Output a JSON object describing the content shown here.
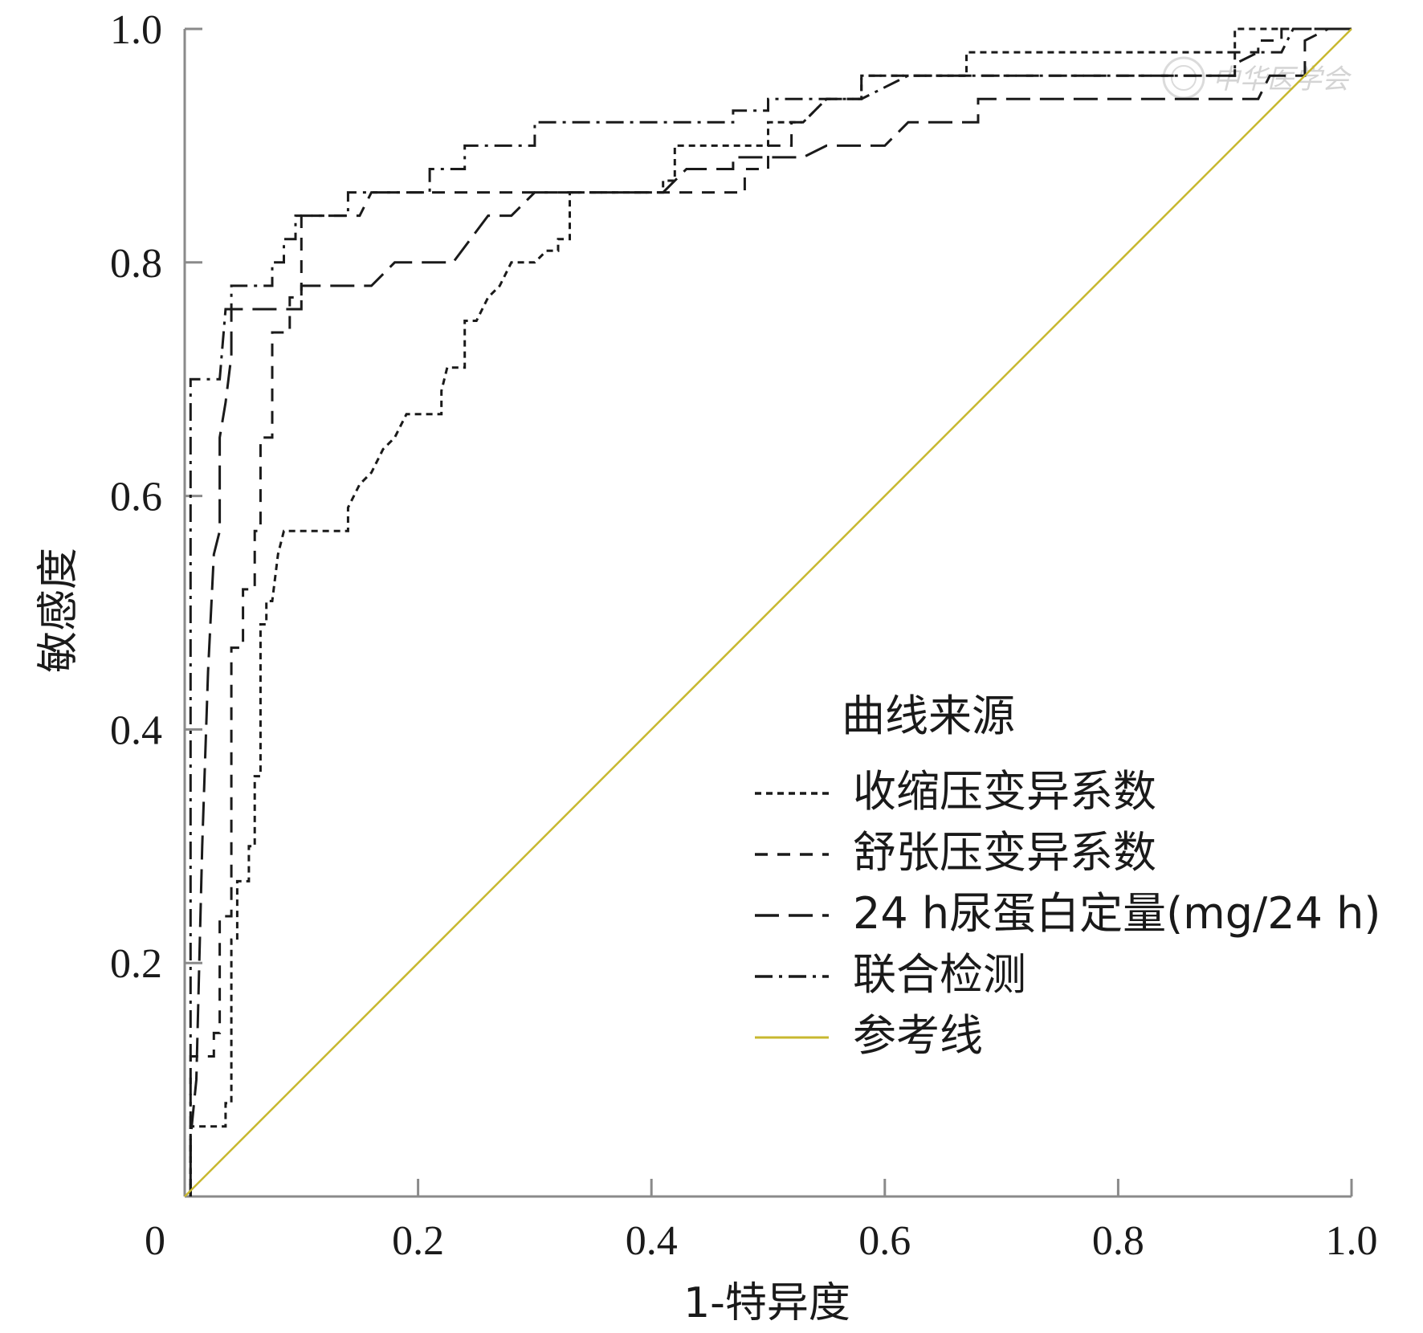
{
  "chart_data": {
    "type": "line",
    "title": "",
    "xlabel": "1-特异度",
    "ylabel": "敏感度",
    "xlim": [
      0,
      1
    ],
    "ylim": [
      0,
      1
    ],
    "x_ticks": [
      "0",
      "0.2",
      "0.4",
      "0.6",
      "0.8",
      "1.0"
    ],
    "y_ticks": [
      "0.2",
      "0.4",
      "0.6",
      "0.8",
      "1.0"
    ],
    "grid": false,
    "legend": {
      "title": "曲线来源",
      "position": "bottom-right"
    },
    "series": [
      {
        "name": "收缩压变异系数",
        "style": "short-dash",
        "color": "#1a1a1a",
        "points": [
          [
            0.005,
            0
          ],
          [
            0.005,
            0.06
          ],
          [
            0.035,
            0.06
          ],
          [
            0.035,
            0.08
          ],
          [
            0.04,
            0.08
          ],
          [
            0.04,
            0.22
          ],
          [
            0.045,
            0.22
          ],
          [
            0.045,
            0.27
          ],
          [
            0.055,
            0.27
          ],
          [
            0.055,
            0.3
          ],
          [
            0.06,
            0.3
          ],
          [
            0.06,
            0.36
          ],
          [
            0.065,
            0.36
          ],
          [
            0.065,
            0.49
          ],
          [
            0.07,
            0.49
          ],
          [
            0.07,
            0.51
          ],
          [
            0.075,
            0.51
          ],
          [
            0.08,
            0.55
          ],
          [
            0.085,
            0.57
          ],
          [
            0.14,
            0.57
          ],
          [
            0.14,
            0.59
          ],
          [
            0.15,
            0.61
          ],
          [
            0.16,
            0.62
          ],
          [
            0.17,
            0.64
          ],
          [
            0.18,
            0.65
          ],
          [
            0.19,
            0.67
          ],
          [
            0.22,
            0.67
          ],
          [
            0.22,
            0.69
          ],
          [
            0.225,
            0.71
          ],
          [
            0.24,
            0.71
          ],
          [
            0.24,
            0.75
          ],
          [
            0.25,
            0.75
          ],
          [
            0.26,
            0.77
          ],
          [
            0.27,
            0.78
          ],
          [
            0.28,
            0.8
          ],
          [
            0.3,
            0.8
          ],
          [
            0.31,
            0.81
          ],
          [
            0.32,
            0.81
          ],
          [
            0.32,
            0.82
          ],
          [
            0.33,
            0.82
          ],
          [
            0.33,
            0.86
          ],
          [
            0.39,
            0.86
          ],
          [
            0.41,
            0.86
          ],
          [
            0.41,
            0.87
          ],
          [
            0.42,
            0.87
          ],
          [
            0.42,
            0.9
          ],
          [
            0.5,
            0.9
          ],
          [
            0.5,
            0.92
          ],
          [
            0.53,
            0.92
          ],
          [
            0.55,
            0.94
          ],
          [
            0.58,
            0.94
          ],
          [
            0.58,
            0.96
          ],
          [
            0.67,
            0.96
          ],
          [
            0.67,
            0.98
          ],
          [
            0.9,
            0.98
          ],
          [
            0.9,
            1.0
          ],
          [
            1.0,
            1.0
          ]
        ]
      },
      {
        "name": "舒张压变异系数",
        "style": "dash",
        "color": "#1a1a1a",
        "points": [
          [
            0.005,
            0
          ],
          [
            0.005,
            0.12
          ],
          [
            0.025,
            0.12
          ],
          [
            0.025,
            0.14
          ],
          [
            0.03,
            0.14
          ],
          [
            0.03,
            0.24
          ],
          [
            0.04,
            0.24
          ],
          [
            0.04,
            0.47
          ],
          [
            0.05,
            0.47
          ],
          [
            0.05,
            0.52
          ],
          [
            0.06,
            0.52
          ],
          [
            0.06,
            0.57
          ],
          [
            0.065,
            0.57
          ],
          [
            0.065,
            0.65
          ],
          [
            0.075,
            0.65
          ],
          [
            0.075,
            0.74
          ],
          [
            0.09,
            0.74
          ],
          [
            0.09,
            0.77
          ],
          [
            0.1,
            0.77
          ],
          [
            0.1,
            0.84
          ],
          [
            0.15,
            0.84
          ],
          [
            0.16,
            0.86
          ],
          [
            0.48,
            0.86
          ],
          [
            0.48,
            0.88
          ],
          [
            0.5,
            0.88
          ],
          [
            0.5,
            0.9
          ],
          [
            0.52,
            0.9
          ],
          [
            0.52,
            0.92
          ],
          [
            0.53,
            0.92
          ],
          [
            0.55,
            0.94
          ],
          [
            0.58,
            0.94
          ],
          [
            0.58,
            0.96
          ],
          [
            0.9,
            0.96
          ],
          [
            0.9,
            0.98
          ],
          [
            0.92,
            0.98
          ],
          [
            0.92,
            0.99
          ],
          [
            0.94,
            0.99
          ],
          [
            0.94,
            1.0
          ],
          [
            1.0,
            1.0
          ]
        ]
      },
      {
        "name": "24 h尿蛋白定量(mg/24 h)",
        "style": "long-dash",
        "color": "#1a1a1a",
        "points": [
          [
            0.005,
            0
          ],
          [
            0.005,
            0.05
          ],
          [
            0.01,
            0.1
          ],
          [
            0.015,
            0.3
          ],
          [
            0.02,
            0.45
          ],
          [
            0.025,
            0.55
          ],
          [
            0.03,
            0.57
          ],
          [
            0.03,
            0.65
          ],
          [
            0.035,
            0.68
          ],
          [
            0.04,
            0.72
          ],
          [
            0.04,
            0.76
          ],
          [
            0.1,
            0.76
          ],
          [
            0.1,
            0.78
          ],
          [
            0.16,
            0.78
          ],
          [
            0.18,
            0.8
          ],
          [
            0.23,
            0.8
          ],
          [
            0.26,
            0.84
          ],
          [
            0.28,
            0.84
          ],
          [
            0.3,
            0.86
          ],
          [
            0.41,
            0.86
          ],
          [
            0.43,
            0.88
          ],
          [
            0.47,
            0.88
          ],
          [
            0.47,
            0.89
          ],
          [
            0.5,
            0.89
          ],
          [
            0.53,
            0.89
          ],
          [
            0.55,
            0.9
          ],
          [
            0.6,
            0.9
          ],
          [
            0.62,
            0.92
          ],
          [
            0.68,
            0.92
          ],
          [
            0.68,
            0.94
          ],
          [
            0.92,
            0.94
          ],
          [
            0.93,
            0.96
          ],
          [
            0.96,
            0.96
          ],
          [
            0.96,
            0.99
          ],
          [
            0.98,
            1.0
          ],
          [
            1.0,
            1.0
          ]
        ]
      },
      {
        "name": "联合检测",
        "style": "dash-dot",
        "color": "#1a1a1a",
        "points": [
          [
            0.005,
            0
          ],
          [
            0.005,
            0.7
          ],
          [
            0.03,
            0.7
          ],
          [
            0.035,
            0.76
          ],
          [
            0.04,
            0.76
          ],
          [
            0.04,
            0.78
          ],
          [
            0.075,
            0.78
          ],
          [
            0.075,
            0.8
          ],
          [
            0.085,
            0.8
          ],
          [
            0.085,
            0.82
          ],
          [
            0.095,
            0.82
          ],
          [
            0.095,
            0.84
          ],
          [
            0.14,
            0.84
          ],
          [
            0.14,
            0.86
          ],
          [
            0.21,
            0.86
          ],
          [
            0.21,
            0.88
          ],
          [
            0.24,
            0.88
          ],
          [
            0.24,
            0.9
          ],
          [
            0.3,
            0.9
          ],
          [
            0.3,
            0.92
          ],
          [
            0.47,
            0.92
          ],
          [
            0.47,
            0.93
          ],
          [
            0.5,
            0.93
          ],
          [
            0.5,
            0.94
          ],
          [
            0.58,
            0.94
          ],
          [
            0.6,
            0.95
          ],
          [
            0.62,
            0.96
          ],
          [
            0.9,
            0.96
          ],
          [
            0.9,
            0.97
          ],
          [
            0.92,
            0.98
          ],
          [
            0.94,
            0.98
          ],
          [
            0.95,
            1.0
          ],
          [
            1.0,
            1.0
          ]
        ]
      },
      {
        "name": "参考线",
        "style": "solid",
        "color": "#c8b830",
        "points": [
          [
            0,
            0
          ],
          [
            1,
            1
          ]
        ]
      }
    ]
  },
  "watermark": "中华医学会"
}
